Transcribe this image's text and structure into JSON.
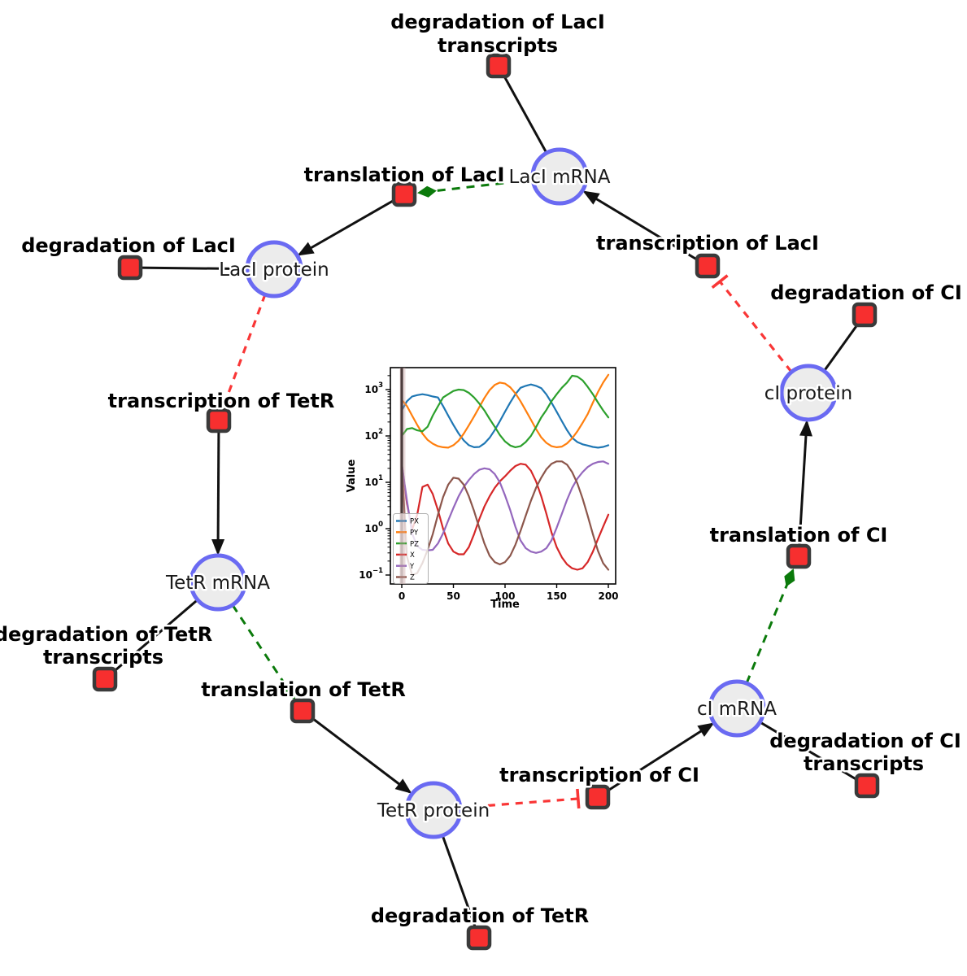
{
  "diagram": {
    "colors": {
      "species_fill": "#ececec",
      "species_border": "#6a6af2",
      "reaction_fill": "#f72f2f",
      "reaction_border": "#3a3a3a",
      "edge_reaction": "#111111",
      "edge_modifier": "#0b7a0b",
      "edge_inhibition": "#f93636"
    },
    "species": [
      {
        "id": "laci-mrna",
        "label": "LacI mRNA"
      },
      {
        "id": "laci-protein",
        "label": "LacI protein"
      },
      {
        "id": "tetr-mrna",
        "label": "TetR mRNA"
      },
      {
        "id": "tetr-protein",
        "label": "TetR protein"
      },
      {
        "id": "ci-mrna",
        "label": "cI mRNA"
      },
      {
        "id": "ci-protein",
        "label": "cI protein"
      }
    ],
    "reactions": [
      {
        "id": "degradation-laci-transcripts",
        "lines": [
          "degradation of LacI",
          "transcripts"
        ]
      },
      {
        "id": "translation-laci",
        "lines": [
          "translation of LacI"
        ]
      },
      {
        "id": "degradation-laci",
        "lines": [
          "degradation of LacI"
        ]
      },
      {
        "id": "transcription-laci",
        "lines": [
          "transcription of LacI"
        ]
      },
      {
        "id": "degradation-ci",
        "lines": [
          "degradation of CI"
        ]
      },
      {
        "id": "transcription-tetr",
        "lines": [
          "transcription of TetR"
        ]
      },
      {
        "id": "degradation-tetr-transcripts",
        "lines": [
          "degradation of TetR",
          "transcripts"
        ]
      },
      {
        "id": "translation-tetr",
        "lines": [
          "translation of TetR"
        ]
      },
      {
        "id": "degradation-tetr",
        "lines": [
          "degradation of TetR"
        ]
      },
      {
        "id": "transcription-ci",
        "lines": [
          "transcription of CI"
        ]
      },
      {
        "id": "degradation-ci-transcripts",
        "lines": [
          "degradation of CI",
          "transcripts"
        ]
      },
      {
        "id": "translation-ci",
        "lines": [
          "translation of CI"
        ]
      }
    ]
  },
  "chart_data": {
    "type": "line",
    "title": "",
    "xlabel": "Time",
    "ylabel": "Value",
    "y_scale": "log",
    "grid": false,
    "legend_position": "lower left",
    "x_ticks": [
      0,
      50,
      100,
      150,
      200
    ],
    "y_tick_exponents": [
      3,
      2,
      1,
      0,
      -1
    ],
    "xlim": [
      -11,
      206
    ],
    "ylim_log": [
      -1.19,
      3.47
    ],
    "vline_t": 0,
    "x": [
      0,
      5,
      10,
      15,
      20,
      25,
      30,
      35,
      40,
      45,
      50,
      55,
      60,
      65,
      70,
      75,
      80,
      85,
      90,
      95,
      100,
      105,
      110,
      115,
      120,
      125,
      130,
      135,
      140,
      145,
      150,
      155,
      160,
      165,
      170,
      175,
      180,
      185,
      190,
      195,
      200
    ],
    "series": [
      {
        "name": "PX",
        "color": "#1f77b4",
        "values": [
          355,
          562,
          708,
          759,
          794,
          759,
          708,
          676,
          440,
          275,
          173,
          113,
          80,
          63,
          57,
          58,
          69,
          91,
          134,
          208,
          334,
          528,
          793,
          1091,
          1202,
          1288,
          1202,
          1076,
          787,
          525,
          332,
          208,
          133,
          91,
          74,
          66,
          62,
          58,
          56,
          58,
          63
        ]
      },
      {
        "name": "PY",
        "color": "#ff7f0e",
        "values": [
          600,
          440,
          275,
          173,
          113,
          82,
          68,
          60,
          57,
          56,
          63,
          79,
          112,
          170,
          263,
          417,
          660,
          977,
          1259,
          1413,
          1349,
          1122,
          832,
          562,
          355,
          224,
          141,
          93,
          71,
          60,
          57,
          59,
          69,
          89,
          126,
          191,
          295,
          525,
          891,
          1413,
          2089
        ]
      },
      {
        "name": "PZ",
        "color": "#2ca02c",
        "values": [
          100,
          141,
          148,
          132,
          126,
          158,
          275,
          437,
          676,
          794,
          933,
          1000,
          977,
          851,
          676,
          501,
          355,
          234,
          158,
          105,
          76,
          62,
          57,
          60,
          74,
          100,
          155,
          251,
          363,
          562,
          794,
          1096,
          1413,
          1995,
          1905,
          1585,
          1148,
          794,
          525,
          355,
          251
        ]
      },
      {
        "name": "X",
        "color": "#d62728",
        "values": [
          25,
          3.5,
          0.95,
          2.0,
          7.9,
          8.9,
          5.6,
          2.5,
          1.0,
          0.48,
          0.32,
          0.28,
          0.28,
          0.4,
          0.76,
          1.6,
          3.0,
          5.0,
          7.6,
          10.5,
          13.5,
          17.8,
          22.4,
          25.1,
          24.0,
          17.8,
          10.5,
          5.0,
          2.1,
          0.83,
          0.4,
          0.24,
          0.17,
          0.14,
          0.13,
          0.14,
          0.19,
          0.32,
          0.6,
          1.1,
          2.0
        ]
      },
      {
        "name": "Y",
        "color": "#9467bd",
        "values": [
          25,
          4.0,
          0.79,
          0.42,
          0.35,
          0.34,
          0.35,
          0.48,
          0.79,
          1.5,
          2.8,
          5.0,
          7.9,
          11.2,
          15.1,
          18.6,
          20.0,
          19.1,
          15.1,
          10.0,
          5.2,
          2.5,
          1.1,
          0.56,
          0.38,
          0.32,
          0.3,
          0.32,
          0.38,
          0.56,
          1.05,
          2.1,
          4.2,
          7.6,
          12.0,
          16.6,
          21.4,
          25.1,
          27.5,
          28.2,
          25.1
        ]
      },
      {
        "name": "Z",
        "color": "#8c564b",
        "values": [
          25,
          0.25,
          0.1,
          0.11,
          0.18,
          0.35,
          0.76,
          2.0,
          4.8,
          8.9,
          12.6,
          12.0,
          8.9,
          5.0,
          2.4,
          1.05,
          0.48,
          0.26,
          0.19,
          0.17,
          0.19,
          0.26,
          0.45,
          0.89,
          1.9,
          4.0,
          7.6,
          12.6,
          19.1,
          25.1,
          28.2,
          28.2,
          24.0,
          16.6,
          9.5,
          4.5,
          1.9,
          0.76,
          0.33,
          0.18,
          0.13
        ]
      }
    ]
  }
}
